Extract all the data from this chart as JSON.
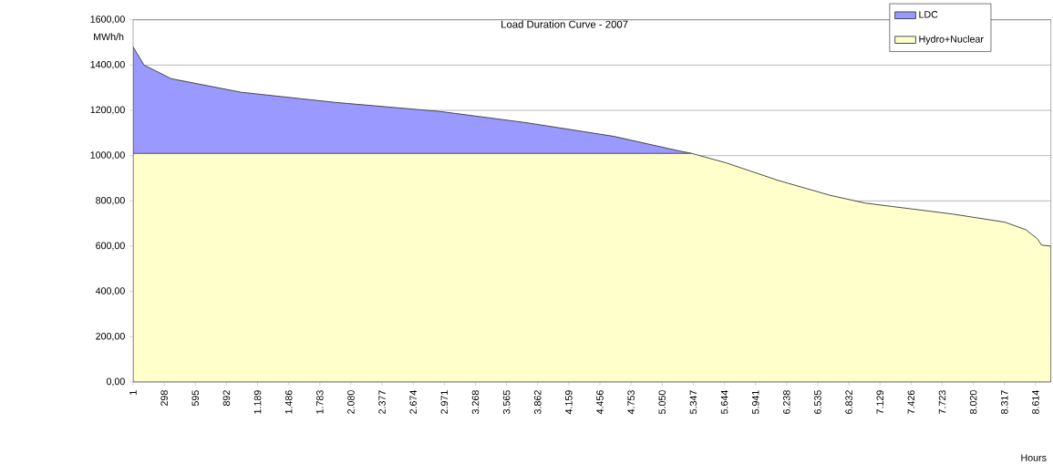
{
  "chart_data": {
    "type": "area",
    "title": "Load Duration Curve - 2007",
    "ylabel": "MWh/h",
    "xlabel": "Hours",
    "x": [
      1,
      105,
      364,
      1030,
      1930,
      2930,
      3760,
      4590,
      5220,
      5330,
      5660,
      6160,
      6650,
      6990,
      7820,
      8320,
      8520,
      8630,
      8670,
      8760
    ],
    "series": [
      {
        "name": "LDC",
        "color": "#9999ff",
        "values": [
          1480,
          1400,
          1340,
          1280,
          1235,
          1195,
          1145,
          1085,
          1020,
          1010,
          null,
          null,
          null,
          null,
          null,
          null,
          null,
          null,
          null,
          null
        ]
      },
      {
        "name": "Hydro+Nuclear",
        "color": "#ffffcc",
        "values": [
          1010,
          1010,
          1010,
          1010,
          1010,
          1010,
          1010,
          1010,
          1010,
          1010,
          968,
          890,
          825,
          790,
          742,
          706,
          673,
          633,
          605,
          600
        ]
      }
    ],
    "xlim": [
      1,
      8760
    ],
    "ylim": [
      0,
      1600
    ],
    "xticks": [
      {
        "value": 1,
        "label": "1"
      },
      {
        "value": 298,
        "label": "298"
      },
      {
        "value": 595,
        "label": "595"
      },
      {
        "value": 892,
        "label": "892"
      },
      {
        "value": 1189,
        "label": "1.189"
      },
      {
        "value": 1486,
        "label": "1.486"
      },
      {
        "value": 1783,
        "label": "1.783"
      },
      {
        "value": 2080,
        "label": "2.080"
      },
      {
        "value": 2377,
        "label": "2.377"
      },
      {
        "value": 2674,
        "label": "2.674"
      },
      {
        "value": 2971,
        "label": "2.971"
      },
      {
        "value": 3268,
        "label": "3.268"
      },
      {
        "value": 3565,
        "label": "3.565"
      },
      {
        "value": 3862,
        "label": "3.862"
      },
      {
        "value": 4159,
        "label": "4.159"
      },
      {
        "value": 4456,
        "label": "4.456"
      },
      {
        "value": 4753,
        "label": "4.753"
      },
      {
        "value": 5050,
        "label": "5.050"
      },
      {
        "value": 5347,
        "label": "5.347"
      },
      {
        "value": 5644,
        "label": "5.644"
      },
      {
        "value": 5941,
        "label": "5.941"
      },
      {
        "value": 6238,
        "label": "6.238"
      },
      {
        "value": 6535,
        "label": "6.535"
      },
      {
        "value": 6832,
        "label": "6.832"
      },
      {
        "value": 7129,
        "label": "7.129"
      },
      {
        "value": 7426,
        "label": "7.426"
      },
      {
        "value": 7723,
        "label": "7.723"
      },
      {
        "value": 8020,
        "label": "8.020"
      },
      {
        "value": 8317,
        "label": "8.317"
      },
      {
        "value": 8614,
        "label": "8.614"
      }
    ],
    "yticks": [
      {
        "value": 0,
        "label": "0,00"
      },
      {
        "value": 200,
        "label": "200,00"
      },
      {
        "value": 400,
        "label": "400,00"
      },
      {
        "value": 600,
        "label": "600,00"
      },
      {
        "value": 800,
        "label": "800,00"
      },
      {
        "value": 1000,
        "label": "1000,00"
      },
      {
        "value": 1200,
        "label": "1200,00"
      },
      {
        "value": 1400,
        "label": "1400,00"
      },
      {
        "value": 1600,
        "label": "1600,00"
      }
    ],
    "grid": "y",
    "legend": "top right"
  }
}
